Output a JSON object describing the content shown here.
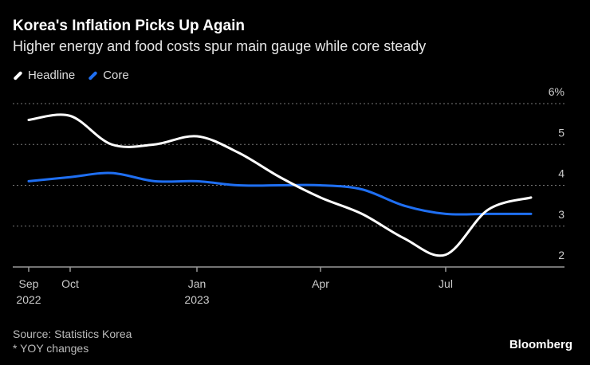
{
  "header": {
    "title": "Korea's Inflation Picks Up Again",
    "subtitle": "Higher energy and food costs spur main gauge while core steady"
  },
  "footer": {
    "source": "Source: Statistics Korea",
    "note": "* YOY changes",
    "brand": "Bloomberg"
  },
  "chart_data": {
    "type": "line",
    "title": "Korea's Inflation Picks Up Again",
    "x": [
      "2022-09",
      "2022-10",
      "2022-11",
      "2022-12",
      "2023-01",
      "2023-02",
      "2023-03",
      "2023-04",
      "2023-05",
      "2023-06",
      "2023-07",
      "2023-08",
      "2023-09"
    ],
    "series": [
      {
        "name": "Headline",
        "color": "#ffffff",
        "values": [
          5.6,
          5.7,
          5.0,
          5.0,
          5.2,
          4.8,
          4.2,
          3.7,
          3.3,
          2.7,
          2.3,
          3.4,
          3.7
        ]
      },
      {
        "name": "Core",
        "color": "#1f6ff2",
        "values": [
          4.1,
          4.2,
          4.3,
          4.1,
          4.1,
          4.0,
          4.0,
          4.0,
          3.9,
          3.5,
          3.3,
          3.3,
          3.3
        ]
      }
    ],
    "ylim": [
      2,
      6
    ],
    "yticks": [
      {
        "v": 6,
        "label": "6%"
      },
      {
        "v": 5,
        "label": "5"
      },
      {
        "v": 4,
        "label": "4"
      },
      {
        "v": 3,
        "label": "3"
      },
      {
        "v": 2,
        "label": "2"
      }
    ],
    "xticks": [
      {
        "i": 0,
        "label": "Sep",
        "sub": "2022"
      },
      {
        "i": 1,
        "label": "Oct",
        "sub": ""
      },
      {
        "i": 4,
        "label": "Jan",
        "sub": "2023"
      },
      {
        "i": 7,
        "label": "Apr",
        "sub": ""
      },
      {
        "i": 10,
        "label": "Jul",
        "sub": ""
      }
    ],
    "grid": true,
    "legend": "top-left",
    "ylabel": "",
    "xlabel": ""
  }
}
